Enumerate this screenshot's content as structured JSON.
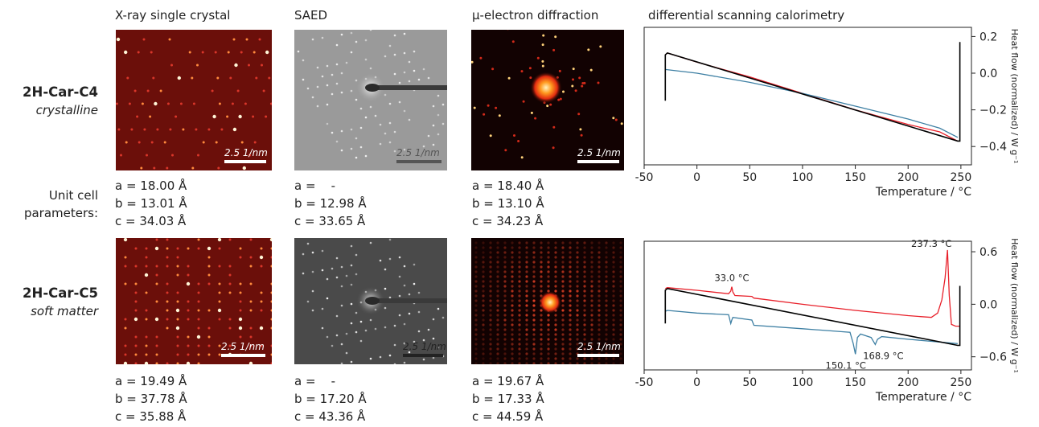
{
  "columns": {
    "xray": "X-ray single crystal",
    "saed": "SAED",
    "ued": "μ-electron diffraction",
    "dsc": "differential scanning calorimetry"
  },
  "rows": {
    "c4": {
      "name": "2H-Car-C4",
      "state": "crystalline"
    },
    "c5": {
      "name": "2H-Car-C5",
      "state": "soft matter"
    }
  },
  "unit_cell_label": {
    "line1": "Unit cell",
    "line2": "parameters:"
  },
  "scale_label": "2.5 1/nm",
  "params": {
    "c4": {
      "xray": {
        "a": "a = 18.00 Å",
        "b": "b = 13.01 Å",
        "c": "c = 34.03 Å"
      },
      "saed": {
        "a": "a =    -",
        "b": "b = 12.98 Å",
        "c": "c = 33.65 Å"
      },
      "ued": {
        "a": "a = 18.40 Å",
        "b": "b = 13.10 Å",
        "c": "c = 34.23 Å"
      }
    },
    "c5": {
      "xray": {
        "a": "a = 19.49 Å",
        "b": "b = 37.78 Å",
        "c": "c = 35.88 Å"
      },
      "saed": {
        "a": "a =    -",
        "b": "b = 17.20 Å",
        "c": "c = 43.36 Å"
      },
      "ued": {
        "a": "a = 19.67 Å",
        "b": "b = 17.33 Å",
        "c": "c = 44.59 Å"
      }
    }
  },
  "colors": {
    "xray_bg": "#6b0f0a",
    "ued_bg": "#120202",
    "red_curve": "#e8202a",
    "blue_curve": "#3d7fa3",
    "black_curve": "#000000"
  },
  "chart_data": [
    {
      "type": "line",
      "title": "",
      "xlabel": "Temperature / °C",
      "ylabel": "Heat flow (normalized) / W g⁻¹",
      "xlim": [
        -50,
        260
      ],
      "ylim": [
        -0.5,
        0.25
      ],
      "xticks": [
        "-50",
        "0",
        "50",
        "100",
        "150",
        "200",
        "250"
      ],
      "xtick_values": [
        -50,
        0,
        50,
        100,
        150,
        200,
        250
      ],
      "yticks": [
        "0.2",
        "0.0",
        "−0.2",
        "−0.4"
      ],
      "ytick_values": [
        0.2,
        0.0,
        -0.2,
        -0.4
      ],
      "series": [
        {
          "color": "red",
          "x": [
            -30,
            -28,
            0,
            50,
            100,
            150,
            200,
            230,
            247
          ],
          "y": [
            0.1,
            0.11,
            0.06,
            -0.02,
            -0.11,
            -0.2,
            -0.28,
            -0.32,
            -0.37
          ]
        },
        {
          "color": "blue",
          "x": [
            -30,
            0,
            50,
            100,
            150,
            200,
            230,
            247
          ],
          "y": [
            0.02,
            0.0,
            -0.05,
            -0.11,
            -0.18,
            -0.25,
            -0.3,
            -0.35
          ]
        },
        {
          "color": "black",
          "x": [
            -30,
            -30,
            -28,
            247,
            249,
            249
          ],
          "y": [
            -0.15,
            0.1,
            0.11,
            -0.37,
            -0.37,
            0.17
          ]
        }
      ],
      "annotations": []
    },
    {
      "type": "line",
      "title": "",
      "xlabel": "Temperature / °C",
      "ylabel": "Heat flow (normalized) / W g⁻¹",
      "xlim": [
        -50,
        260
      ],
      "ylim": [
        -0.75,
        0.72
      ],
      "xticks": [
        "-50",
        "0",
        "50",
        "100",
        "150",
        "200",
        "250"
      ],
      "xtick_values": [
        -50,
        0,
        50,
        100,
        150,
        200,
        250
      ],
      "yticks": [
        "0.6",
        "0.0",
        "−0.6"
      ],
      "ytick_values": [
        0.6,
        0.0,
        -0.6
      ],
      "series": [
        {
          "color": "red",
          "x": [
            -30,
            -28,
            0,
            30,
            32,
            33,
            34,
            36,
            52,
            54,
            100,
            150,
            200,
            222,
            228,
            232,
            235,
            237.3,
            239,
            241,
            245,
            249
          ],
          "y": [
            0.18,
            0.19,
            0.16,
            0.12,
            0.15,
            0.2,
            0.14,
            0.1,
            0.09,
            0.07,
            0.0,
            -0.07,
            -0.13,
            -0.15,
            -0.1,
            0.05,
            0.3,
            0.62,
            0.1,
            -0.23,
            -0.25,
            -0.25
          ]
        },
        {
          "color": "blue",
          "x": [
            -30,
            -28,
            0,
            30,
            32,
            33,
            34,
            52,
            54,
            100,
            145,
            148,
            150.1,
            152,
            155,
            165,
            168.9,
            171,
            175,
            200,
            247
          ],
          "y": [
            -0.08,
            -0.07,
            -0.1,
            -0.12,
            -0.22,
            -0.18,
            -0.15,
            -0.18,
            -0.24,
            -0.28,
            -0.32,
            -0.45,
            -0.57,
            -0.38,
            -0.34,
            -0.38,
            -0.46,
            -0.4,
            -0.37,
            -0.4,
            -0.45
          ]
        },
        {
          "color": "black",
          "x": [
            -30,
            -30,
            -28,
            247,
            249,
            249
          ],
          "y": [
            -0.22,
            0.16,
            0.18,
            -0.47,
            -0.47,
            0.21
          ]
        }
      ],
      "annotations": [
        {
          "text": "33.0 °C",
          "x": 33.0,
          "y": 0.2
        },
        {
          "text": "237.3 °C",
          "x": 237.3,
          "y": 0.62
        },
        {
          "text": "150.1 °C",
          "x": 150.1,
          "y": -0.57
        },
        {
          "text": "168.9 °C",
          "x": 168.9,
          "y": -0.46
        }
      ]
    }
  ]
}
